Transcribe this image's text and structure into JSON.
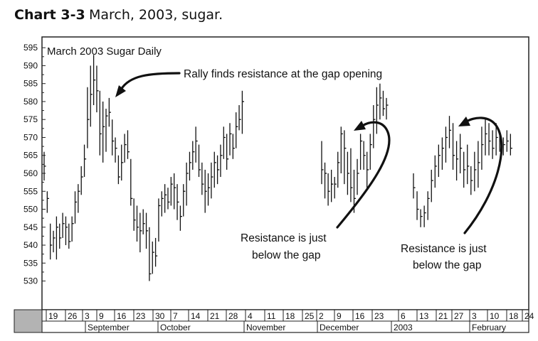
{
  "caption": {
    "label": "Chart 3-3",
    "text": "March, 2003, sugar."
  },
  "chart_data": {
    "type": "bar",
    "subtype": "ohlc",
    "title": "March 2003 Sugar Daily",
    "xlabel": "",
    "ylabel": "",
    "ylim": [
      522,
      598
    ],
    "yticks": [
      530,
      535,
      540,
      545,
      550,
      555,
      560,
      565,
      570,
      575,
      580,
      585,
      590,
      595
    ],
    "grid": false,
    "legend": "none",
    "date_ticks": [
      "19",
      "26",
      "3",
      "9",
      "16",
      "23",
      "30",
      "7",
      "14",
      "21",
      "28",
      "4",
      "11",
      "18",
      "25",
      "2",
      "9",
      "16",
      "23",
      "6",
      "13",
      "21",
      "27",
      "3",
      "10",
      "18",
      "24"
    ],
    "months": [
      "September",
      "October",
      "November",
      "December",
      "2003",
      "February"
    ],
    "annotations": [
      {
        "id": "gap-opening",
        "text": "Rally finds resistance at the gap opening"
      },
      {
        "id": "below-gap-1",
        "lines": [
          "Resistance is just",
          "below the gap"
        ]
      },
      {
        "id": "below-gap-2",
        "lines": [
          "Resistance is just",
          "below the gap"
        ]
      }
    ],
    "segments": [
      {
        "bars": [
          [
            566,
            558,
            562
          ],
          [
            555,
            549,
            553
          ],
          [
            546,
            536,
            540
          ],
          [
            544,
            538,
            542
          ],
          [
            548,
            536,
            545
          ],
          [
            546,
            539,
            542
          ],
          [
            549,
            542,
            546
          ],
          [
            548,
            540,
            545
          ],
          [
            546,
            539,
            541
          ],
          [
            548,
            541,
            546
          ],
          [
            555,
            546,
            552
          ],
          [
            557,
            549,
            555
          ],
          [
            562,
            554,
            559
          ],
          [
            568,
            559,
            564
          ],
          [
            584,
            567,
            575
          ],
          [
            590,
            573,
            582
          ],
          [
            593,
            579,
            586
          ],
          [
            590,
            577,
            583
          ],
          [
            583,
            565,
            571
          ],
          [
            580,
            563,
            573
          ],
          [
            578,
            566,
            576
          ],
          [
            581,
            573,
            577
          ],
          [
            575,
            565,
            569
          ],
          [
            570,
            563,
            567
          ],
          [
            565,
            557,
            559
          ],
          [
            568,
            558,
            563
          ],
          [
            571,
            563,
            568
          ],
          [
            572,
            564,
            566
          ],
          [
            564,
            551,
            553
          ],
          [
            553,
            544,
            547
          ],
          [
            551,
            541,
            545
          ],
          [
            549,
            538,
            544
          ],
          [
            550,
            543,
            546
          ],
          [
            549,
            539,
            544
          ],
          [
            545,
            530,
            532
          ],
          [
            541,
            532,
            538
          ],
          [
            542,
            534,
            537
          ],
          [
            553,
            541,
            551
          ],
          [
            555,
            548,
            553
          ],
          [
            557,
            549,
            554
          ],
          [
            556,
            550,
            552
          ],
          [
            559,
            551,
            557
          ],
          [
            560,
            550,
            556
          ],
          [
            557,
            547,
            552
          ],
          [
            551,
            544,
            548
          ],
          [
            557,
            548,
            555
          ],
          [
            563,
            551,
            560
          ],
          [
            566,
            558,
            563
          ],
          [
            569,
            561,
            566
          ],
          [
            573,
            563,
            569
          ],
          [
            568,
            559,
            561
          ],
          [
            563,
            554,
            557
          ],
          [
            561,
            549,
            555
          ],
          [
            560,
            551,
            556
          ],
          [
            563,
            553,
            559
          ],
          [
            566,
            556,
            563
          ],
          [
            565,
            557,
            561
          ],
          [
            568,
            559,
            565
          ],
          [
            573,
            564,
            570
          ],
          [
            571,
            561,
            564
          ],
          [
            574,
            565,
            571
          ],
          [
            571,
            564,
            567
          ],
          [
            577,
            567,
            573
          ],
          [
            579,
            572,
            575
          ],
          [
            583,
            571,
            580
          ]
        ]
      },
      {
        "bars": [
          [
            569,
            557,
            561
          ],
          [
            563,
            553,
            560
          ],
          [
            560,
            551,
            555
          ],
          [
            561,
            552,
            557
          ],
          [
            559,
            553,
            557
          ],
          [
            566,
            556,
            563
          ],
          [
            573,
            560,
            571
          ],
          [
            572,
            557,
            567
          ],
          [
            566,
            554,
            560
          ],
          [
            567,
            552,
            556
          ],
          [
            561,
            549,
            553
          ],
          [
            564,
            554,
            560
          ],
          [
            571,
            561,
            569
          ],
          [
            569,
            561,
            565
          ],
          [
            566,
            556,
            561
          ],
          [
            571,
            561,
            568
          ],
          [
            579,
            567,
            575
          ],
          [
            584,
            571,
            579
          ],
          [
            585,
            575,
            581
          ],
          [
            583,
            576,
            578
          ],
          [
            581,
            575,
            579
          ]
        ]
      },
      {
        "bars": [
          [
            560,
            553,
            556
          ],
          [
            555,
            547,
            550
          ],
          [
            550,
            545,
            548
          ],
          [
            551,
            545,
            549
          ],
          [
            555,
            547,
            553
          ],
          [
            561,
            552,
            558
          ],
          [
            565,
            556,
            562
          ],
          [
            568,
            559,
            565
          ],
          [
            570,
            561,
            567
          ],
          [
            573,
            563,
            570
          ],
          [
            576,
            567,
            572
          ],
          [
            574,
            561,
            565
          ],
          [
            569,
            558,
            564
          ],
          [
            571,
            560,
            567
          ],
          [
            566,
            556,
            561
          ],
          [
            568,
            557,
            562
          ],
          [
            562,
            554,
            558
          ],
          [
            566,
            555,
            561
          ],
          [
            569,
            556,
            563
          ],
          [
            573,
            561,
            568
          ],
          [
            575,
            565,
            571
          ],
          [
            574,
            565,
            569
          ],
          [
            572,
            564,
            567
          ],
          [
            574,
            565,
            570
          ],
          [
            571,
            566,
            569
          ],
          [
            570,
            565,
            568
          ],
          [
            572,
            566,
            569
          ],
          [
            571,
            565,
            567
          ]
        ]
      }
    ]
  }
}
